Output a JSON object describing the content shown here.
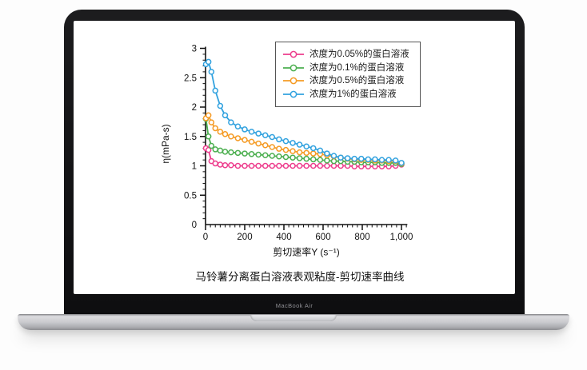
{
  "device": {
    "name": "MacBook Air"
  },
  "chart_data": {
    "type": "line",
    "title": "马铃薯分离蛋白溶液表观粘度-剪切速率曲线",
    "xlabel": "剪切速率Y (s⁻¹)",
    "ylabel": "η(mPa-s)",
    "xlim": [
      0,
      1030
    ],
    "ylim": [
      0,
      3
    ],
    "grid": false,
    "legend_position": "top-right",
    "x_ticks": [
      0,
      200,
      400,
      600,
      800,
      1000
    ],
    "x_tick_labels": [
      "0",
      "200",
      "400",
      "600",
      "800",
      "1,000"
    ],
    "x_minor_step": 25,
    "y_ticks": [
      0,
      0.5,
      1,
      1.5,
      2,
      2.5,
      3
    ],
    "y_tick_labels": [
      "0",
      "0.5",
      "1",
      "1.5",
      "2",
      "2.5",
      "3"
    ],
    "y_minor_step": 0.1,
    "x": [
      2,
      15,
      30,
      50,
      75,
      100,
      130,
      165,
      200,
      235,
      270,
      305,
      340,
      375,
      410,
      445,
      480,
      515,
      550,
      585,
      620,
      655,
      690,
      725,
      760,
      795,
      830,
      865,
      900,
      935,
      970,
      1000
    ],
    "series": [
      {
        "name": "浓度为0.05%的蛋白溶液",
        "color": "#ED3D8D",
        "values": [
          1.3,
          1.27,
          1.08,
          1.04,
          1.02,
          1.01,
          1.01,
          1.0,
          1.0,
          1.0,
          1.0,
          1.0,
          1.0,
          1.0,
          1.0,
          1.0,
          1.0,
          1.0,
          1.0,
          1.0,
          1.0,
          1.0,
          1.0,
          1.0,
          0.99,
          0.99,
          0.99,
          0.99,
          0.99,
          0.99,
          1.0,
          1.02
        ]
      },
      {
        "name": "浓度为0.1%的蛋白溶液",
        "color": "#4CAF50",
        "values": [
          1.8,
          1.5,
          1.34,
          1.28,
          1.26,
          1.24,
          1.23,
          1.22,
          1.21,
          1.2,
          1.19,
          1.18,
          1.17,
          1.16,
          1.15,
          1.14,
          1.13,
          1.12,
          1.11,
          1.1,
          1.09,
          1.08,
          1.08,
          1.07,
          1.07,
          1.06,
          1.06,
          1.06,
          1.05,
          1.05,
          1.05,
          1.03
        ]
      },
      {
        "name": "浓度为0.5%的蛋白溶液",
        "color": "#F59B25",
        "values": [
          1.81,
          1.86,
          1.74,
          1.64,
          1.58,
          1.54,
          1.5,
          1.47,
          1.44,
          1.41,
          1.38,
          1.35,
          1.32,
          1.29,
          1.27,
          1.25,
          1.23,
          1.22,
          1.21,
          1.2,
          1.18,
          1.16,
          1.14,
          1.12,
          1.11,
          1.1,
          1.1,
          1.09,
          1.09,
          1.08,
          1.08,
          1.04
        ]
      },
      {
        "name": "浓度为1%的蛋白溶液",
        "color": "#32A2DF",
        "values": [
          2.73,
          2.77,
          2.6,
          2.28,
          2.02,
          1.86,
          1.74,
          1.67,
          1.62,
          1.58,
          1.55,
          1.52,
          1.49,
          1.45,
          1.42,
          1.39,
          1.36,
          1.33,
          1.3,
          1.26,
          1.21,
          1.17,
          1.14,
          1.13,
          1.12,
          1.12,
          1.11,
          1.11,
          1.1,
          1.1,
          1.09,
          1.05
        ]
      }
    ]
  }
}
